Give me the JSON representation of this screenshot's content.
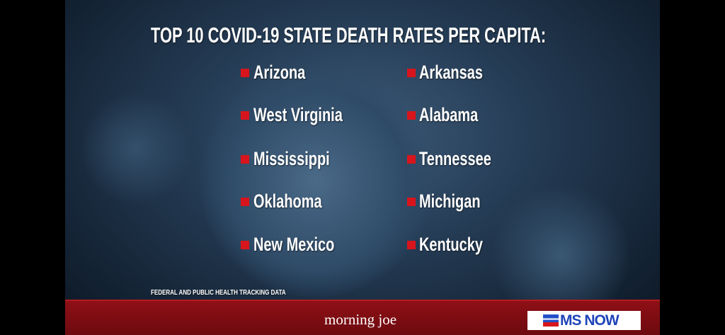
{
  "header": {
    "title": "TOP 10 COVID-19 STATE DEATH RATES PER CAPITA:"
  },
  "list": {
    "left": [
      "Arizona",
      "West Virginia",
      "Mississippi",
      "Oklahoma",
      "New Mexico"
    ],
    "right": [
      "Arkansas",
      "Alabama",
      "Tennessee",
      "Michigan",
      "Kentucky"
    ]
  },
  "source": "FEDERAL AND PUBLIC HEALTH TRACKING DATA",
  "footer": {
    "show": "morning joe",
    "network": "MS NOW"
  }
}
